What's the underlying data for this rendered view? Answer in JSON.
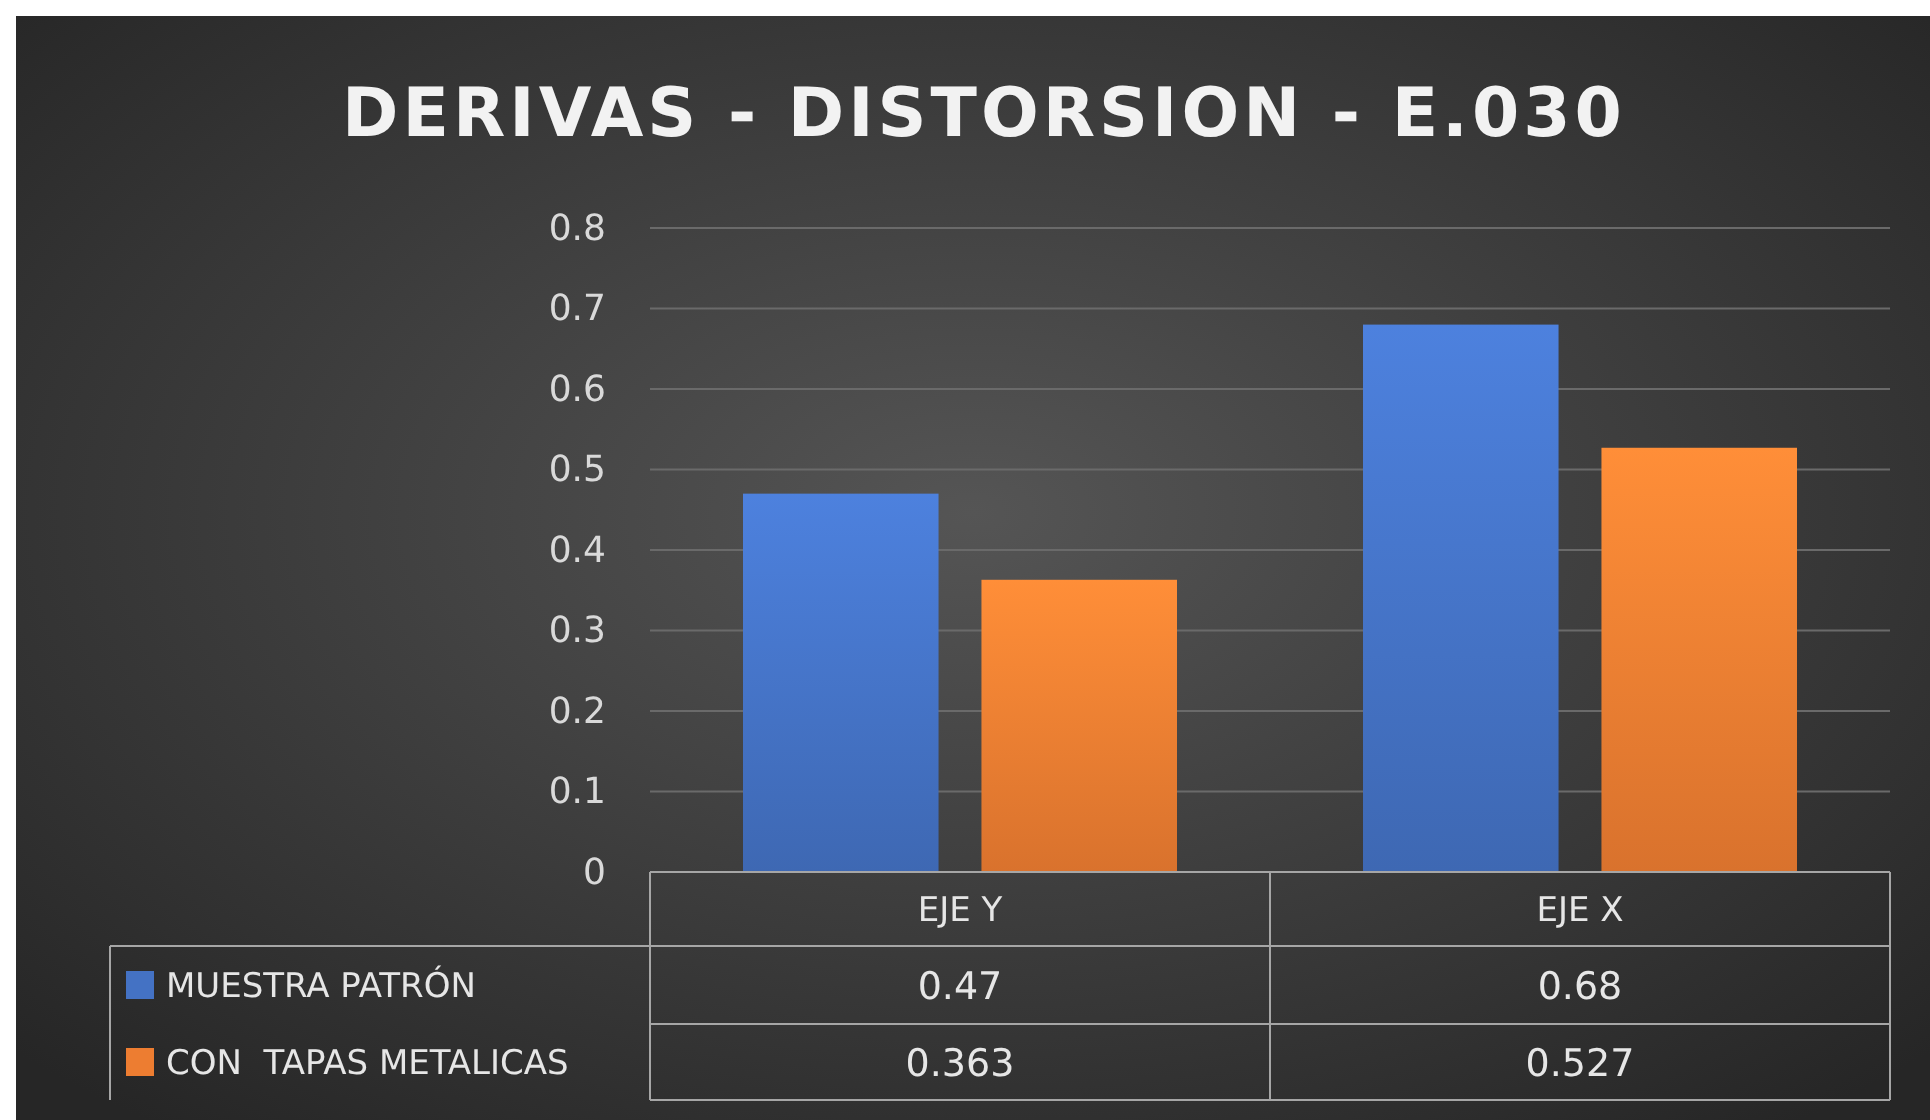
{
  "chart_data": {
    "type": "bar",
    "title": "DERIVAS - DISTORSION - E.030",
    "categories": [
      "EJE Y",
      "EJE X"
    ],
    "series": [
      {
        "name": "MUESTRA PATRÓN",
        "color": "#4472c4",
        "values": [
          0.47,
          0.68
        ]
      },
      {
        "name": "CON  TAPAS METALICAS",
        "color": "#ed7d31",
        "values": [
          0.363,
          0.527
        ]
      }
    ],
    "ylim": [
      0,
      0.8
    ],
    "yticks": [
      0,
      0.1,
      0.2,
      0.3,
      0.4,
      0.5,
      0.6,
      0.7,
      0.8
    ],
    "grid": "y",
    "legend": "bottom",
    "data_labels": true
  }
}
